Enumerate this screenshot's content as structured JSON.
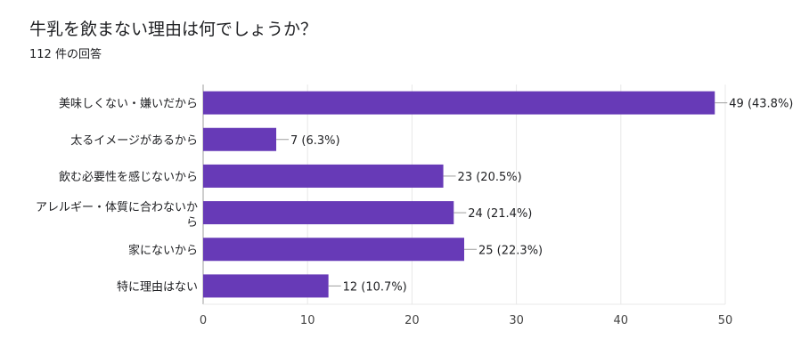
{
  "title": "牛乳を飲まない理由は何でしょうか？",
  "subtitle": "112 件の回答",
  "colors": {
    "bar": "#673ab7",
    "grid": "#e8e8e8",
    "axis": "#9e9e9e"
  },
  "chart_data": {
    "type": "bar",
    "orientation": "horizontal",
    "categories": [
      "美味しくない・嫌いだから",
      "太るイメージがあるから",
      "飲む必要性を感じないから",
      "アレルギー・体質に合わないから",
      "家にないから",
      "特に理由はない"
    ],
    "values": [
      49,
      7,
      23,
      24,
      25,
      12
    ],
    "data_labels": [
      "49 (43.8%)",
      "7 (6.3%)",
      "23 (20.5%)",
      "24 (21.4%)",
      "25 (22.3%)",
      "12 (10.7%)"
    ],
    "xlim": [
      0,
      50
    ],
    "ticks": [
      0,
      10,
      20,
      30,
      40,
      50
    ],
    "grid": true
  }
}
